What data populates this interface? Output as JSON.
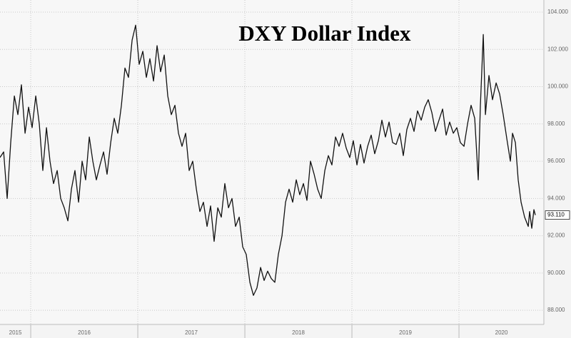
{
  "chart_data": {
    "type": "line",
    "title": "DXY Dollar Index",
    "x": [
      2015.713,
      2015.747,
      2015.78,
      2015.813,
      2015.847,
      2015.88,
      2015.913,
      2015.947,
      2015.98,
      2016.013,
      2016.047,
      2016.08,
      2016.113,
      2016.147,
      2016.18,
      2016.213,
      2016.247,
      2016.28,
      2016.313,
      2016.347,
      2016.38,
      2016.413,
      2016.447,
      2016.48,
      2016.513,
      2016.547,
      2016.58,
      2016.613,
      2016.647,
      2016.68,
      2016.713,
      2016.747,
      2016.78,
      2016.813,
      2016.847,
      2016.88,
      2016.913,
      2016.947,
      2016.98,
      2017.013,
      2017.047,
      2017.08,
      2017.113,
      2017.147,
      2017.18,
      2017.213,
      2017.247,
      2017.28,
      2017.313,
      2017.347,
      2017.38,
      2017.413,
      2017.447,
      2017.48,
      2017.513,
      2017.547,
      2017.58,
      2017.613,
      2017.647,
      2017.68,
      2017.713,
      2017.747,
      2017.78,
      2017.813,
      2017.847,
      2017.88,
      2017.913,
      2017.947,
      2017.98,
      2018.013,
      2018.047,
      2018.08,
      2018.113,
      2018.147,
      2018.18,
      2018.213,
      2018.247,
      2018.28,
      2018.313,
      2018.347,
      2018.38,
      2018.413,
      2018.447,
      2018.48,
      2018.513,
      2018.547,
      2018.58,
      2018.613,
      2018.647,
      2018.68,
      2018.713,
      2018.747,
      2018.78,
      2018.813,
      2018.847,
      2018.88,
      2018.913,
      2018.947,
      2018.98,
      2019.013,
      2019.047,
      2019.08,
      2019.113,
      2019.147,
      2019.18,
      2019.213,
      2019.247,
      2019.28,
      2019.313,
      2019.347,
      2019.38,
      2019.413,
      2019.447,
      2019.48,
      2019.513,
      2019.547,
      2019.58,
      2019.613,
      2019.647,
      2019.68,
      2019.713,
      2019.747,
      2019.78,
      2019.813,
      2019.847,
      2019.88,
      2019.913,
      2019.947,
      2019.98,
      2020.013,
      2020.047,
      2020.08,
      2020.113,
      2020.147,
      2020.18,
      2020.2,
      2020.227,
      2020.247,
      2020.28,
      2020.313,
      2020.347,
      2020.38,
      2020.413,
      2020.447,
      2020.48,
      2020.5,
      2020.527,
      2020.553,
      2020.58,
      2020.613,
      2020.647,
      2020.66,
      2020.68,
      2020.7,
      2020.713
    ],
    "values": [
      96.2,
      96.5,
      94.0,
      97,
      99.5,
      98.5,
      100.1,
      97.5,
      98.9,
      97.8,
      99.5,
      98,
      95.5,
      97.8,
      96,
      94.8,
      95.5,
      94,
      93.5,
      92.8,
      94.5,
      95.5,
      93.8,
      96,
      95,
      97.3,
      96,
      95,
      95.8,
      96.5,
      95.3,
      97,
      98.3,
      97.5,
      99,
      101,
      100.5,
      102.5,
      103.3,
      101.2,
      101.9,
      100.5,
      101.5,
      100.3,
      102.2,
      100.8,
      101.7,
      99.5,
      98.5,
      99,
      97.5,
      96.8,
      97.5,
      95.5,
      96,
      94.5,
      93.3,
      93.8,
      92.5,
      93.6,
      91.7,
      93.5,
      93,
      94.8,
      93.5,
      94,
      92.5,
      93,
      91.4,
      91,
      89.5,
      88.8,
      89.2,
      90.3,
      89.6,
      90.1,
      89.7,
      89.5,
      91,
      92,
      93.8,
      94.5,
      93.8,
      95,
      94.2,
      94.8,
      93.9,
      96,
      95.3,
      94.5,
      94,
      95.5,
      96.3,
      95.8,
      97.3,
      96.8,
      97.5,
      96.7,
      96.2,
      97.1,
      95.8,
      96.9,
      95.9,
      96.8,
      97.4,
      96.4,
      97.1,
      98.2,
      97.3,
      98.1,
      97,
      96.9,
      97.5,
      96.3,
      97.7,
      98.3,
      97.6,
      98.7,
      98.2,
      98.9,
      99.3,
      98.6,
      97.6,
      98.2,
      98.8,
      97.4,
      98.1,
      97.5,
      97.8,
      97,
      96.8,
      98,
      99,
      98.3,
      95,
      99,
      102.8,
      98.5,
      100.6,
      99.3,
      100.2,
      99.6,
      98.5,
      97.2,
      96,
      97.5,
      97,
      95,
      93.8,
      93.0,
      92.5,
      93.3,
      92.4,
      93.4,
      93.11
    ],
    "last_label": "93.110",
    "color": "#111111",
    "xlim": [
      2015.713,
      2020.793
    ],
    "xticks": [
      2015,
      2016,
      2017,
      2018,
      2019,
      2020
    ],
    "ylim": [
      87.24,
      104.65
    ],
    "yticks": [
      {
        "value": 88,
        "label": "88.000"
      },
      {
        "value": 90,
        "label": "90.000"
      },
      {
        "value": 92,
        "label": "92.000"
      },
      {
        "value": 94,
        "label": "94.000"
      },
      {
        "value": 96,
        "label": "96.000"
      },
      {
        "value": 98,
        "label": "98.000"
      },
      {
        "value": 100,
        "label": "100.000"
      },
      {
        "value": 102,
        "label": "102.000"
      },
      {
        "value": 104,
        "label": "104.000"
      }
    ],
    "grid": true
  }
}
